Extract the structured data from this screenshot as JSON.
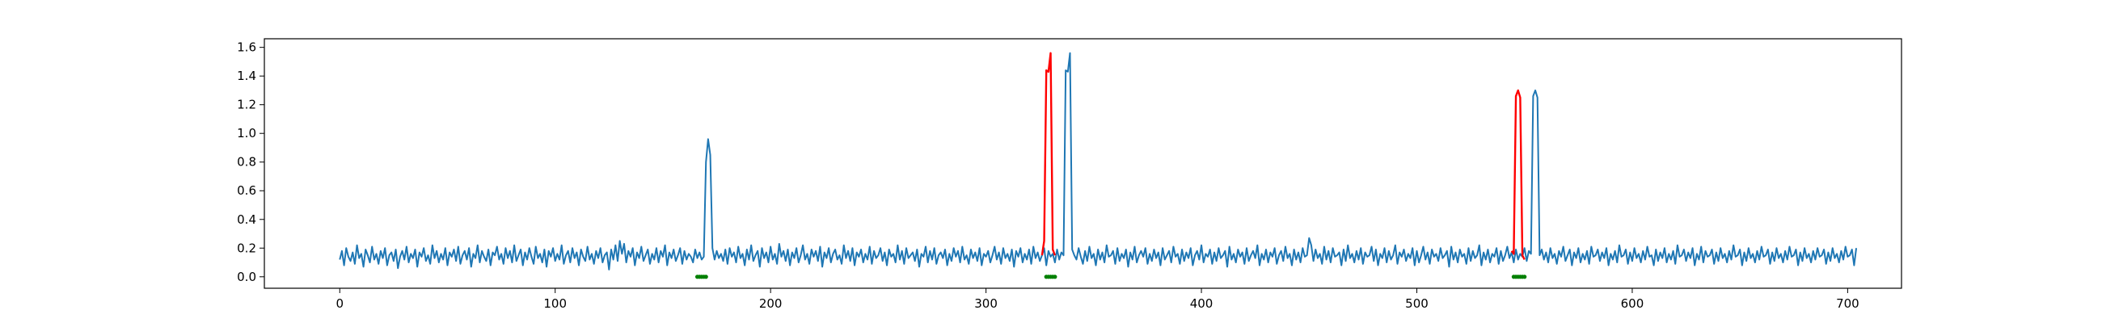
{
  "chart_data": {
    "type": "line",
    "title": "",
    "xlabel": "",
    "ylabel": "",
    "xlim": [
      -35,
      725
    ],
    "ylim": [
      -0.08,
      1.66
    ],
    "grid": false,
    "x_ticks": [
      0,
      100,
      200,
      300,
      400,
      500,
      600,
      700
    ],
    "x_tick_labels": [
      "0",
      "100",
      "200",
      "300",
      "400",
      "500",
      "600",
      "700"
    ],
    "y_ticks": [
      0.0,
      0.2,
      0.4,
      0.6,
      0.8,
      1.0,
      1.2,
      1.4,
      1.6
    ],
    "y_tick_labels": [
      "0.0",
      "0.2",
      "0.4",
      "0.6",
      "0.8",
      "1.0",
      "1.2",
      "1.4",
      "1.6"
    ],
    "series": [
      {
        "kind": "line",
        "color": "#1f77b4",
        "x_start": 0,
        "x_step": 1,
        "values": [
          0.12,
          0.18,
          0.08,
          0.2,
          0.14,
          0.11,
          0.17,
          0.09,
          0.22,
          0.13,
          0.16,
          0.07,
          0.19,
          0.15,
          0.1,
          0.21,
          0.12,
          0.16,
          0.09,
          0.18,
          0.13,
          0.2,
          0.08,
          0.15,
          0.17,
          0.11,
          0.19,
          0.06,
          0.14,
          0.18,
          0.12,
          0.21,
          0.1,
          0.16,
          0.13,
          0.19,
          0.07,
          0.17,
          0.14,
          0.2,
          0.11,
          0.15,
          0.09,
          0.22,
          0.13,
          0.18,
          0.1,
          0.16,
          0.12,
          0.2,
          0.08,
          0.17,
          0.14,
          0.19,
          0.11,
          0.21,
          0.09,
          0.15,
          0.18,
          0.12,
          0.2,
          0.07,
          0.16,
          0.13,
          0.22,
          0.1,
          0.18,
          0.14,
          0.11,
          0.19,
          0.08,
          0.17,
          0.15,
          0.21,
          0.12,
          0.16,
          0.09,
          0.2,
          0.13,
          0.18,
          0.1,
          0.22,
          0.11,
          0.15,
          0.19,
          0.08,
          0.17,
          0.12,
          0.2,
          0.14,
          0.09,
          0.21,
          0.13,
          0.16,
          0.1,
          0.19,
          0.07,
          0.18,
          0.14,
          0.2,
          0.11,
          0.16,
          0.12,
          0.22,
          0.09,
          0.15,
          0.18,
          0.1,
          0.2,
          0.13,
          0.17,
          0.08,
          0.19,
          0.14,
          0.11,
          0.21,
          0.12,
          0.16,
          0.09,
          0.18,
          0.13,
          0.2,
          0.1,
          0.15,
          0.17,
          0.05,
          0.19,
          0.12,
          0.22,
          0.11,
          0.25,
          0.16,
          0.23,
          0.1,
          0.18,
          0.14,
          0.2,
          0.08,
          0.17,
          0.13,
          0.21,
          0.11,
          0.15,
          0.19,
          0.09,
          0.16,
          0.12,
          0.2,
          0.1,
          0.18,
          0.14,
          0.22,
          0.08,
          0.17,
          0.13,
          0.19,
          0.11,
          0.15,
          0.2,
          0.09,
          0.18,
          0.12,
          0.16,
          0.14,
          0.1,
          0.19,
          0.13,
          0.17,
          0.12,
          0.14,
          0.8,
          0.96,
          0.85,
          0.2,
          0.12,
          0.18,
          0.13,
          0.16,
          0.11,
          0.19,
          0.09,
          0.2,
          0.14,
          0.17,
          0.1,
          0.21,
          0.13,
          0.16,
          0.08,
          0.19,
          0.12,
          0.22,
          0.11,
          0.15,
          0.18,
          0.07,
          0.2,
          0.13,
          0.17,
          0.1,
          0.21,
          0.12,
          0.16,
          0.09,
          0.23,
          0.14,
          0.18,
          0.11,
          0.19,
          0.08,
          0.17,
          0.13,
          0.2,
          0.1,
          0.15,
          0.22,
          0.12,
          0.16,
          0.09,
          0.19,
          0.14,
          0.18,
          0.11,
          0.21,
          0.07,
          0.17,
          0.13,
          0.2,
          0.1,
          0.16,
          0.19,
          0.12,
          0.15,
          0.09,
          0.22,
          0.13,
          0.18,
          0.11,
          0.2,
          0.08,
          0.17,
          0.14,
          0.19,
          0.1,
          0.16,
          0.12,
          0.21,
          0.09,
          0.18,
          0.13,
          0.15,
          0.2,
          0.11,
          0.17,
          0.08,
          0.19,
          0.14,
          0.16,
          0.1,
          0.22,
          0.12,
          0.18,
          0.09,
          0.2,
          0.13,
          0.15,
          0.17,
          0.11,
          0.19,
          0.07,
          0.16,
          0.14,
          0.21,
          0.1,
          0.18,
          0.12,
          0.2,
          0.09,
          0.15,
          0.17,
          0.13,
          0.19,
          0.08,
          0.16,
          0.11,
          0.2,
          0.14,
          0.18,
          0.1,
          0.21,
          0.12,
          0.15,
          0.09,
          0.19,
          0.13,
          0.17,
          0.11,
          0.2,
          0.08,
          0.16,
          0.14,
          0.18,
          0.1,
          0.15,
          0.21,
          0.12,
          0.17,
          0.09,
          0.2,
          0.13,
          0.16,
          0.11,
          0.19,
          0.07,
          0.18,
          0.14,
          0.2,
          0.1,
          0.16,
          0.12,
          0.19,
          0.09,
          0.21,
          0.13,
          0.17,
          0.11,
          0.15,
          0.2,
          0.08,
          0.18,
          0.14,
          0.16,
          0.1,
          0.19,
          0.12,
          0.17,
          0.15,
          1.44,
          1.43,
          1.56,
          0.19,
          0.15,
          0.12,
          0.2,
          0.14,
          0.09,
          0.18,
          0.11,
          0.21,
          0.13,
          0.16,
          0.08,
          0.19,
          0.12,
          0.17,
          0.1,
          0.22,
          0.14,
          0.15,
          0.18,
          0.09,
          0.2,
          0.11,
          0.16,
          0.13,
          0.19,
          0.07,
          0.17,
          0.12,
          0.21,
          0.1,
          0.15,
          0.18,
          0.14,
          0.2,
          0.09,
          0.16,
          0.11,
          0.19,
          0.13,
          0.17,
          0.08,
          0.2,
          0.12,
          0.15,
          0.18,
          0.1,
          0.21,
          0.14,
          0.16,
          0.09,
          0.19,
          0.11,
          0.17,
          0.13,
          0.2,
          0.08,
          0.15,
          0.18,
          0.12,
          0.22,
          0.1,
          0.16,
          0.14,
          0.19,
          0.09,
          0.17,
          0.11,
          0.2,
          0.13,
          0.15,
          0.18,
          0.07,
          0.21,
          0.12,
          0.16,
          0.1,
          0.19,
          0.14,
          0.17,
          0.09,
          0.2,
          0.11,
          0.15,
          0.18,
          0.13,
          0.22,
          0.08,
          0.16,
          0.12,
          0.19,
          0.1,
          0.17,
          0.14,
          0.2,
          0.09,
          0.15,
          0.18,
          0.11,
          0.21,
          0.13,
          0.16,
          0.08,
          0.19,
          0.12,
          0.17,
          0.1,
          0.2,
          0.14,
          0.15,
          0.27,
          0.22,
          0.11,
          0.19,
          0.13,
          0.16,
          0.09,
          0.21,
          0.12,
          0.18,
          0.1,
          0.2,
          0.14,
          0.15,
          0.17,
          0.08,
          0.19,
          0.11,
          0.22,
          0.13,
          0.16,
          0.1,
          0.18,
          0.12,
          0.2,
          0.09,
          0.17,
          0.14,
          0.15,
          0.21,
          0.11,
          0.19,
          0.08,
          0.16,
          0.13,
          0.2,
          0.1,
          0.18,
          0.12,
          0.15,
          0.22,
          0.09,
          0.17,
          0.14,
          0.19,
          0.11,
          0.16,
          0.13,
          0.2,
          0.08,
          0.18,
          0.1,
          0.15,
          0.21,
          0.12,
          0.17,
          0.09,
          0.19,
          0.14,
          0.16,
          0.11,
          0.2,
          0.13,
          0.15,
          0.18,
          0.07,
          0.21,
          0.12,
          0.17,
          0.1,
          0.19,
          0.14,
          0.16,
          0.09,
          0.2,
          0.11,
          0.18,
          0.13,
          0.15,
          0.22,
          0.08,
          0.17,
          0.12,
          0.19,
          0.1,
          0.16,
          0.14,
          0.2,
          0.09,
          0.18,
          0.11,
          0.15,
          0.21,
          0.13,
          0.17,
          0.1,
          0.19,
          0.12,
          0.16,
          0.14,
          0.2,
          0.11,
          0.18,
          0.16,
          1.26,
          1.3,
          1.25,
          0.15,
          0.19,
          0.12,
          0.17,
          0.1,
          0.2,
          0.13,
          0.16,
          0.09,
          0.18,
          0.14,
          0.21,
          0.11,
          0.15,
          0.19,
          0.08,
          0.17,
          0.13,
          0.2,
          0.1,
          0.16,
          0.12,
          0.18,
          0.09,
          0.21,
          0.14,
          0.15,
          0.19,
          0.11,
          0.17,
          0.13,
          0.2,
          0.08,
          0.16,
          0.12,
          0.18,
          0.1,
          0.22,
          0.14,
          0.15,
          0.19,
          0.09,
          0.17,
          0.11,
          0.2,
          0.13,
          0.16,
          0.1,
          0.18,
          0.12,
          0.21,
          0.14,
          0.15,
          0.08,
          0.19,
          0.11,
          0.17,
          0.13,
          0.2,
          0.1,
          0.16,
          0.12,
          0.18,
          0.09,
          0.22,
          0.14,
          0.15,
          0.19,
          0.11,
          0.17,
          0.13,
          0.2,
          0.08,
          0.16,
          0.12,
          0.21,
          0.1,
          0.18,
          0.14,
          0.15,
          0.19,
          0.09,
          0.17,
          0.11,
          0.2,
          0.13,
          0.16,
          0.1,
          0.18,
          0.12,
          0.22,
          0.14,
          0.15,
          0.19,
          0.08,
          0.17,
          0.11,
          0.2,
          0.13,
          0.16,
          0.1,
          0.18,
          0.12,
          0.21,
          0.14,
          0.15,
          0.19,
          0.09,
          0.17,
          0.11,
          0.2,
          0.13,
          0.16,
          0.1,
          0.18,
          0.12,
          0.21,
          0.14,
          0.15,
          0.19,
          0.08,
          0.17,
          0.11,
          0.2,
          0.13,
          0.16,
          0.1,
          0.18,
          0.12,
          0.2,
          0.14,
          0.15,
          0.19,
          0.09,
          0.17,
          0.11,
          0.2,
          0.13,
          0.16,
          0.1,
          0.18,
          0.12,
          0.21,
          0.14,
          0.15,
          0.19,
          0.08,
          0.2
        ]
      },
      {
        "kind": "line",
        "color": "#ff0000",
        "x": [
          326,
          327,
          328,
          329,
          330,
          331,
          332
        ],
        "y": [
          0.15,
          0.25,
          1.44,
          1.43,
          1.56,
          0.19,
          0.15
        ]
      },
      {
        "kind": "line",
        "color": "#ff0000",
        "x": [
          544,
          545,
          546,
          547,
          548,
          549,
          550
        ],
        "y": [
          0.18,
          0.16,
          1.26,
          1.3,
          1.25,
          0.15,
          0.12
        ]
      },
      {
        "kind": "marker",
        "color": "#008000",
        "x": [
          166,
          167,
          168,
          169,
          170
        ],
        "y": [
          0,
          0,
          0,
          0,
          0
        ]
      },
      {
        "kind": "marker",
        "color": "#008000",
        "x": [
          328,
          329,
          330,
          331,
          332
        ],
        "y": [
          0,
          0,
          0,
          0,
          0
        ]
      },
      {
        "kind": "marker",
        "color": "#008000",
        "x": [
          545,
          546,
          547,
          548,
          549,
          550
        ],
        "y": [
          0,
          0,
          0,
          0,
          0,
          0
        ]
      }
    ]
  }
}
